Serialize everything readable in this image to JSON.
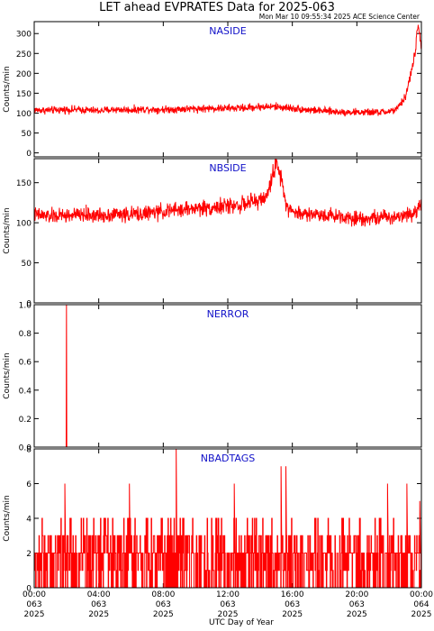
{
  "title": "LET ahead EVPRATES Data for 2025-063",
  "timestamp": "Mon Mar 10 09:55:34 2025 ACE Science Center",
  "x_axis_label": "UTC Day of Year",
  "x_ticks": [
    {
      "time": "00:00",
      "doy": "063",
      "year": "2025",
      "hour": 0
    },
    {
      "time": "04:00",
      "doy": "063",
      "year": "2025",
      "hour": 4
    },
    {
      "time": "08:00",
      "doy": "063",
      "year": "2025",
      "hour": 8
    },
    {
      "time": "12:00",
      "doy": "063",
      "year": "2025",
      "hour": 12
    },
    {
      "time": "16:00",
      "doy": "063",
      "year": "2025",
      "hour": 16
    },
    {
      "time": "20:00",
      "doy": "063",
      "year": "2025",
      "hour": 20
    },
    {
      "time": "00:00",
      "doy": "064",
      "year": "2025",
      "hour": 24
    }
  ],
  "colors": {
    "series": "#ff0000",
    "panel_title": "#1010c8",
    "axes": "#000000"
  },
  "chart_data": [
    {
      "type": "line",
      "title": "NASIDE",
      "ylabel": "Counts/min",
      "xlim": [
        0,
        24
      ],
      "ylim": [
        -10,
        330
      ],
      "yticks": [
        0,
        50,
        100,
        150,
        200,
        250,
        300
      ],
      "x": [
        0,
        1,
        2,
        3,
        4,
        5,
        6,
        7,
        8,
        9,
        10,
        11,
        12,
        13,
        14,
        15,
        16,
        17,
        18,
        19,
        20,
        21,
        21.5,
        22,
        22.5,
        23,
        23.3,
        23.6,
        23.8,
        24
      ],
      "values": [
        108,
        107,
        109,
        108,
        106,
        109,
        108,
        110,
        109,
        110,
        111,
        112,
        112,
        113,
        116,
        116,
        112,
        108,
        105,
        103,
        102,
        102,
        102,
        104,
        110,
        140,
        190,
        250,
        320,
        270
      ]
    },
    {
      "type": "line",
      "title": "NBSIDE",
      "ylabel": "Counts/min",
      "xlim": [
        0,
        24
      ],
      "ylim": [
        0,
        180
      ],
      "yticks": [
        0,
        50,
        100,
        150
      ],
      "x": [
        0,
        1,
        2,
        3,
        4,
        5,
        6,
        7,
        8,
        9,
        10,
        11,
        12,
        13,
        14,
        14.5,
        14.8,
        15,
        15.3,
        15.6,
        16,
        17,
        18,
        19,
        20,
        21,
        22,
        23,
        23.7,
        24
      ],
      "values": [
        110,
        108,
        109,
        110,
        109,
        111,
        110,
        112,
        114,
        116,
        118,
        119,
        121,
        123,
        128,
        135,
        165,
        170,
        160,
        125,
        113,
        111,
        110,
        108,
        106,
        106,
        107,
        110,
        115,
        126
      ]
    },
    {
      "type": "line",
      "title": "NERROR",
      "ylabel": "Counts/min",
      "xlim": [
        0,
        24
      ],
      "ylim": [
        0,
        1
      ],
      "yticks": [
        0.0,
        0.2,
        0.4,
        0.6,
        0.8,
        1.0
      ],
      "x": [
        0,
        1.98,
        2.0,
        2.02,
        24
      ],
      "values": [
        0,
        0,
        1,
        0,
        0
      ]
    },
    {
      "type": "line",
      "title": "NBADTAGS",
      "ylabel": "Counts/min",
      "xlim": [
        0,
        24
      ],
      "ylim": [
        0,
        8
      ],
      "yticks": [
        0,
        2,
        4,
        6,
        8
      ],
      "baseline": 2,
      "spikes": [
        {
          "x": 8.8,
          "value": 8
        },
        {
          "x": 15.3,
          "value": 7
        },
        {
          "x": 15.6,
          "value": 7
        },
        {
          "x": 1.9,
          "value": 6
        },
        {
          "x": 5.9,
          "value": 6
        },
        {
          "x": 12.4,
          "value": 6
        },
        {
          "x": 21.9,
          "value": 6
        },
        {
          "x": 23.1,
          "value": 6
        },
        {
          "x": 23.9,
          "value": 5
        }
      ]
    }
  ]
}
